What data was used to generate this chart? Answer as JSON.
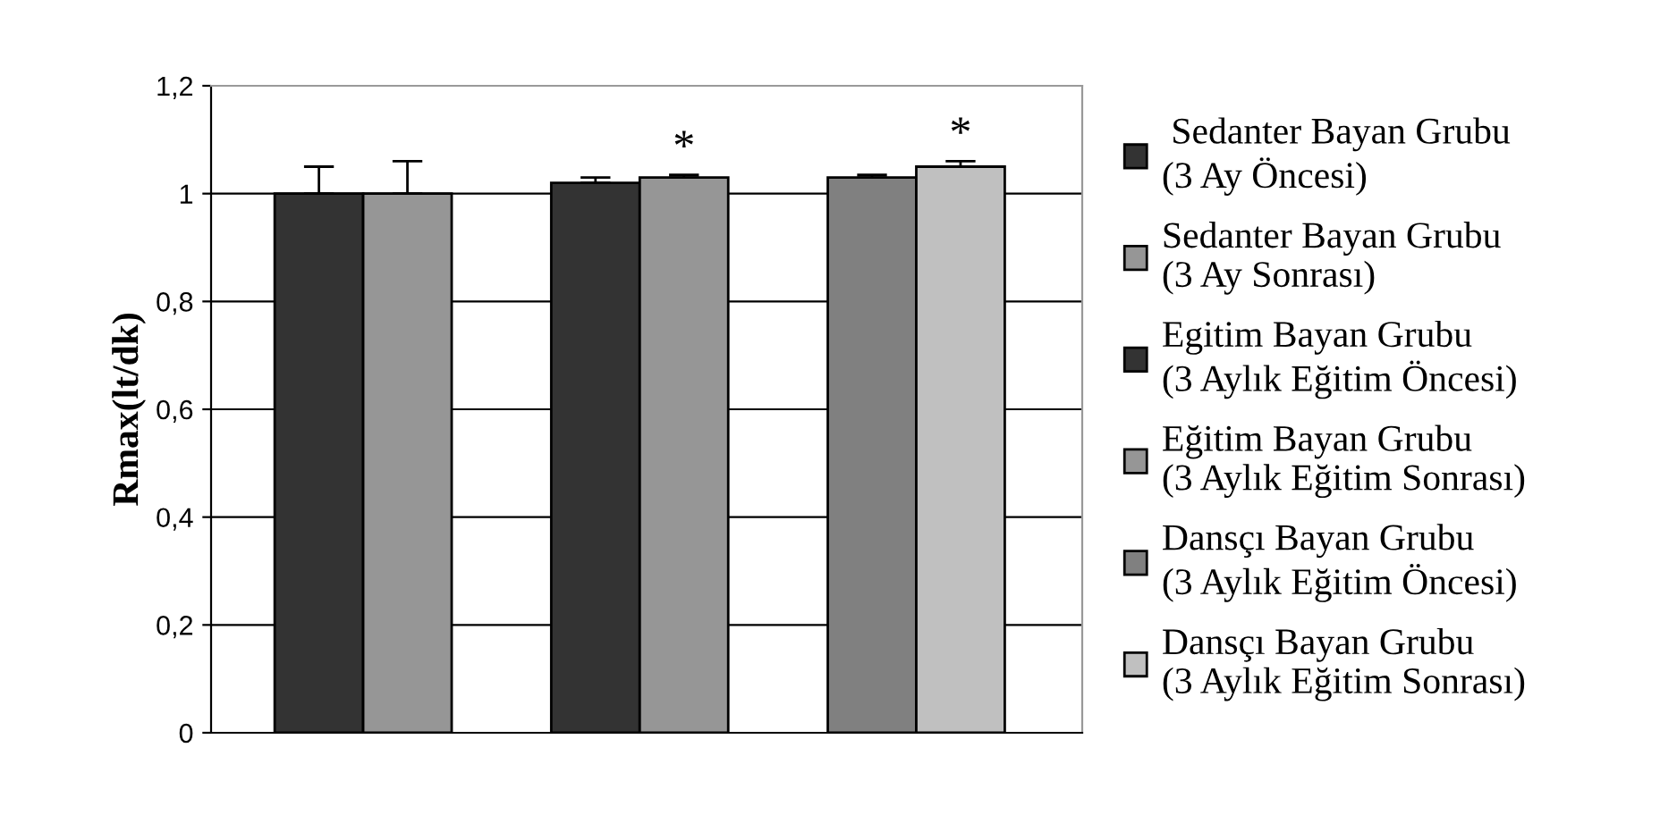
{
  "chart_data": {
    "type": "bar",
    "ylabel": "Rmax(lt/dk)",
    "categories": [
      null,
      null,
      null
    ],
    "series": [
      {
        "name": " Sedanter Bayan Grubu\n(3 Ay Öncesi)",
        "color": "#333333",
        "values": [
          1.0,
          null,
          null
        ],
        "errors": [
          0.05,
          null,
          null
        ]
      },
      {
        "name": "Sedanter Bayan Grubu\n(3 Ay Sonrası)",
        "color": "#969696",
        "values": [
          1.0,
          null,
          null
        ],
        "errors": [
          0.06,
          null,
          null
        ]
      },
      {
        "name": "Egitim Bayan Grubu\n(3 Aylık Eğitim Öncesi)",
        "color": "#333333",
        "values": [
          null,
          1.02,
          null
        ],
        "errors": [
          null,
          0.01,
          null
        ]
      },
      {
        "name": "Eğitim Bayan Grubu\n(3 Aylık Eğitim Sonrası)",
        "color": "#969696",
        "values": [
          null,
          1.03,
          null
        ],
        "errors": [
          null,
          0.005,
          null
        ],
        "value_labels": [
          null,
          "*",
          null
        ]
      },
      {
        "name": "Dansçı Bayan Grubu\n(3 Aylık Eğitim Öncesi)",
        "color": "#808080",
        "values": [
          null,
          null,
          1.03
        ],
        "errors": [
          null,
          null,
          0.005
        ]
      },
      {
        "name": "Dansçı Bayan Grubu\n(3 Aylık Eğitim Sonrası)",
        "color": "#c0c0c0",
        "values": [
          null,
          null,
          1.05
        ],
        "errors": [
          null,
          null,
          0.01
        ],
        "value_labels": [
          null,
          null,
          "*"
        ]
      }
    ],
    "ylim": [
      0,
      1.2
    ],
    "yticks": [
      {
        "value": 0,
        "label": "0"
      },
      {
        "value": 0.2,
        "label": "0,2"
      },
      {
        "value": 0.4,
        "label": "0,4"
      },
      {
        "value": 0.6,
        "label": "0,6"
      },
      {
        "value": 0.8,
        "label": "0,8"
      },
      {
        "value": 1,
        "label": "1"
      },
      {
        "value": 1.2,
        "label": "1,2"
      }
    ],
    "grid": "y",
    "legend": "right"
  }
}
